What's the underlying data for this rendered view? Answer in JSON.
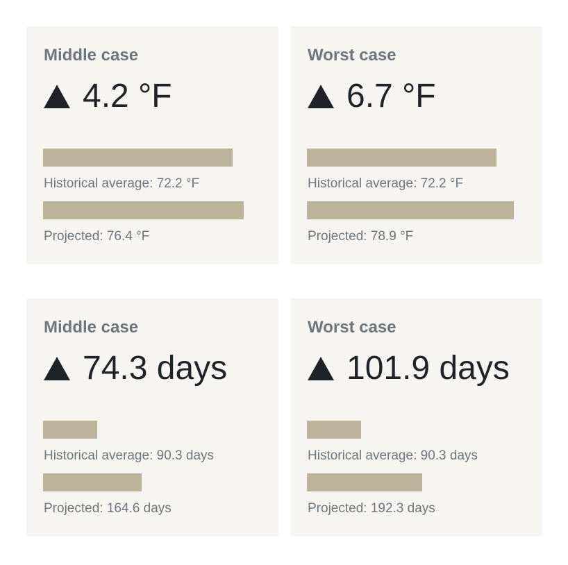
{
  "colors": {
    "card_background": "#f6f5f2",
    "bar": "#bbb39a",
    "title_text": "#6f767b",
    "value_text": "#1f2226"
  },
  "cards": [
    {
      "title": "Middle case",
      "arrow_icon": "triangle-up-icon",
      "delta": "4.2 °F",
      "historical": {
        "label": "Historical average: 72.2 °F",
        "value": 72.2
      },
      "projected": {
        "label": "Projected: 76.4 °F",
        "value": 76.4
      },
      "bar_scale_max": 83.3
    },
    {
      "title": "Worst case",
      "arrow_icon": "triangle-up-icon",
      "delta": "6.7 °F",
      "historical": {
        "label": "Historical average: 72.2 °F",
        "value": 72.2
      },
      "projected": {
        "label": "Projected: 78.9 °F",
        "value": 78.9
      },
      "bar_scale_max": 83.3
    },
    {
      "title": "Middle case",
      "arrow_icon": "triangle-up-icon",
      "delta": "74.3 days",
      "historical": {
        "label": "Historical average: 90.3 days",
        "value": 90.3
      },
      "projected": {
        "label": "Projected: 164.6 days",
        "value": 164.6
      },
      "bar_scale_max": 365
    },
    {
      "title": "Worst case",
      "arrow_icon": "triangle-up-icon",
      "delta": "101.9 days",
      "historical": {
        "label": "Historical average: 90.3 days",
        "value": 90.3
      },
      "projected": {
        "label": "Projected: 192.3 days",
        "value": 192.3
      },
      "bar_scale_max": 365
    }
  ]
}
